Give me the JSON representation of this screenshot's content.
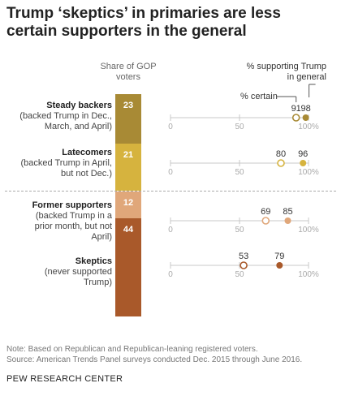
{
  "title": "Trump ‘skeptics’ in primaries are less certain supporters in the general",
  "headers": {
    "share": "Share of GOP voters",
    "support": "% supporting Trump in general",
    "certain": "% certain"
  },
  "groups": [
    {
      "name": "Steady backers",
      "description": "(backed Trump in Dec., March, and April)"
    },
    {
      "name": "Latecomers",
      "description": "(backed Trump in April, but not Dec.)"
    },
    {
      "name": "Former supporters",
      "description": "(backed Trump in a prior month, but not April)"
    },
    {
      "name": "Skeptics",
      "description": "(never supported Trump)"
    }
  ],
  "colors": {
    "steady": "#a88a35",
    "latecomers": "#d6b33e",
    "former": "#e0a77a",
    "skeptics": "#a9592a",
    "axis": "#c8c8c8",
    "tick_label": "#aaaaaa"
  },
  "chart_data": [
    {
      "type": "bar",
      "title": "",
      "ylabel": "Share of GOP voters",
      "categories": [
        "Steady backers",
        "Latecomers",
        "Former supporters",
        "Skeptics"
      ],
      "values": [
        23,
        21,
        12,
        44
      ],
      "stacked": true
    },
    {
      "type": "scatter",
      "title": "",
      "categories": [
        "Steady backers",
        "Latecomers",
        "Former supporters",
        "Skeptics"
      ],
      "xlim": [
        0,
        100
      ],
      "xticks": [
        "0",
        "50",
        "100%"
      ],
      "series": [
        {
          "name": "% certain",
          "values": [
            91,
            80,
            69,
            53
          ],
          "marker": "open"
        },
        {
          "name": "% supporting Trump in general",
          "values": [
            98,
            96,
            85,
            79
          ],
          "marker": "filled"
        }
      ]
    }
  ],
  "footnote": {
    "note": "Note: Based on Republican and Republican-leaning registered voters.",
    "source": "Source: American Trends Panel surveys conducted Dec. 2015 through June 2016."
  },
  "org": "PEW RESEARCH CENTER"
}
